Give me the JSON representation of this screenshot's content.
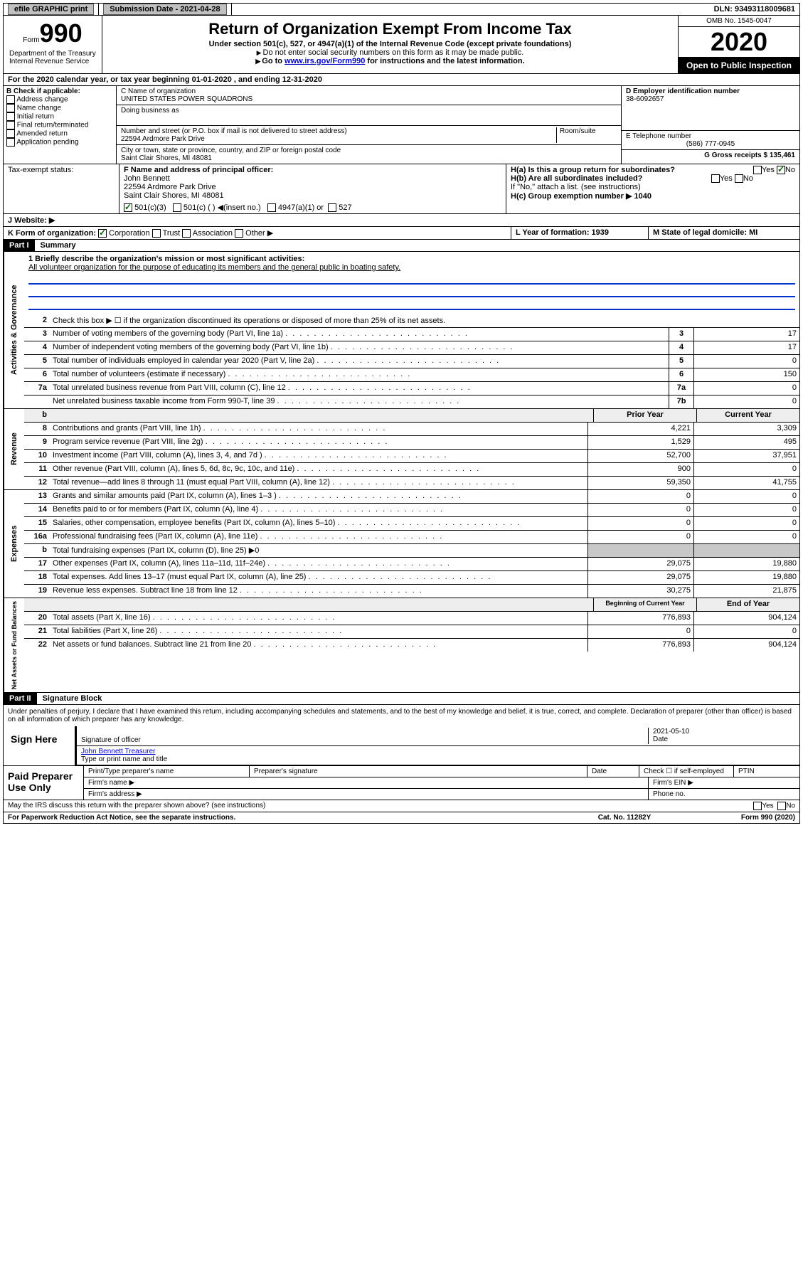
{
  "topbar": {
    "efile": "efile GRAPHIC print",
    "submission_label": "Submission Date - 2021-04-28",
    "dln_label": "DLN: 93493118009681"
  },
  "header": {
    "form_word": "Form",
    "form_num": "990",
    "title": "Return of Organization Exempt From Income Tax",
    "subtitle": "Under section 501(c), 527, or 4947(a)(1) of the Internal Revenue Code (except private foundations)",
    "note1": "Do not enter social security numbers on this form as it may be made public.",
    "note2_pre": "Go to ",
    "note2_link": "www.irs.gov/Form990",
    "note2_post": " for instructions and the latest information.",
    "dept": "Department of the Treasury\nInternal Revenue Service",
    "omb": "OMB No. 1545-0047",
    "year": "2020",
    "open": "Open to Public Inspection"
  },
  "periodA": "For the 2020 calendar year, or tax year beginning 01-01-2020    , and ending 12-31-2020",
  "sectionB": {
    "label": "B Check if applicable:",
    "opts": [
      "Address change",
      "Name change",
      "Initial return",
      "Final return/terminated",
      "Amended return",
      "Application pending"
    ]
  },
  "sectionC": {
    "name_lbl": "C Name of organization",
    "name": "UNITED STATES POWER SQUADRONS",
    "dba_lbl": "Doing business as",
    "addr_lbl": "Number and street (or P.O. box if mail is not delivered to street address)",
    "room_lbl": "Room/suite",
    "addr": "22594 Ardmore Park Drive",
    "city_lbl": "City or town, state or province, country, and ZIP or foreign postal code",
    "city": "Saint Clair Shores, MI  48081"
  },
  "sectionD": {
    "lbl": "D Employer identification number",
    "ein": "38-6092657"
  },
  "sectionE": {
    "lbl": "E Telephone number",
    "phone": "(586) 777-0945"
  },
  "sectionG": {
    "lbl": "G Gross receipts $ 135,461"
  },
  "sectionF": {
    "lbl": "F Name and address of principal officer:",
    "name": "John Bennett",
    "addr1": "22594 Ardmore Park Drive",
    "addr2": "Saint Clair Shores, MI  48081"
  },
  "sectionH": {
    "a": "H(a)  Is this a group return for subordinates?",
    "b": "H(b)  Are all subordinates included?",
    "b_note": "If \"No,\" attach a list. (see instructions)",
    "c": "H(c)  Group exemption number ▶  1040"
  },
  "taxExempt": {
    "lbl": "Tax-exempt status:",
    "o1": "501(c)(3)",
    "o2": "501(c) (  ) ◀(insert no.)",
    "o3": "4947(a)(1) or",
    "o4": "527"
  },
  "sectionJ": "J   Website: ▶",
  "sectionK": {
    "pre": "K Form of organization:",
    "opts": [
      "Corporation",
      "Trust",
      "Association",
      "Other ▶"
    ]
  },
  "sectionL": "L Year of formation: 1939",
  "sectionM": "M State of legal domicile: MI",
  "part1": {
    "label": "Part I",
    "title": "Summary",
    "q1_lbl": "1  Briefly describe the organization's mission or most significant activities:",
    "q1_val": "All volunteer organization for the purpose of educating its members and the general public in boating safety.",
    "q2": "Check this box ▶ ☐  if the organization discontinued its operations or disposed of more than 25% of its net assets.",
    "rows_gov": [
      {
        "n": "3",
        "d": "Number of voting members of the governing body (Part VI, line 1a)",
        "box": "3",
        "v": "17"
      },
      {
        "n": "4",
        "d": "Number of independent voting members of the governing body (Part VI, line 1b)",
        "box": "4",
        "v": "17"
      },
      {
        "n": "5",
        "d": "Total number of individuals employed in calendar year 2020 (Part V, line 2a)",
        "box": "5",
        "v": "0"
      },
      {
        "n": "6",
        "d": "Total number of volunteers (estimate if necessary)",
        "box": "6",
        "v": "150"
      },
      {
        "n": "7a",
        "d": "Total unrelated business revenue from Part VIII, column (C), line 12",
        "box": "7a",
        "v": "0"
      },
      {
        "n": "",
        "d": "Net unrelated business taxable income from Form 990-T, line 39",
        "box": "7b",
        "v": "0"
      }
    ],
    "hdr_b": "b",
    "hdr_prior": "Prior Year",
    "hdr_curr": "Current Year",
    "rows_rev": [
      {
        "n": "8",
        "d": "Contributions and grants (Part VIII, line 1h)",
        "p": "4,221",
        "c": "3,309"
      },
      {
        "n": "9",
        "d": "Program service revenue (Part VIII, line 2g)",
        "p": "1,529",
        "c": "495"
      },
      {
        "n": "10",
        "d": "Investment income (Part VIII, column (A), lines 3, 4, and 7d )",
        "p": "52,700",
        "c": "37,951"
      },
      {
        "n": "11",
        "d": "Other revenue (Part VIII, column (A), lines 5, 6d, 8c, 9c, 10c, and 11e)",
        "p": "900",
        "c": "0"
      },
      {
        "n": "12",
        "d": "Total revenue—add lines 8 through 11 (must equal Part VIII, column (A), line 12)",
        "p": "59,350",
        "c": "41,755"
      }
    ],
    "rows_exp": [
      {
        "n": "13",
        "d": "Grants and similar amounts paid (Part IX, column (A), lines 1–3 )",
        "p": "0",
        "c": "0"
      },
      {
        "n": "14",
        "d": "Benefits paid to or for members (Part IX, column (A), line 4)",
        "p": "0",
        "c": "0"
      },
      {
        "n": "15",
        "d": "Salaries, other compensation, employee benefits (Part IX, column (A), lines 5–10)",
        "p": "0",
        "c": "0"
      },
      {
        "n": "16a",
        "d": "Professional fundraising fees (Part IX, column (A), line 11e)",
        "p": "0",
        "c": "0"
      },
      {
        "n": "b",
        "d": "Total fundraising expenses (Part IX, column (D), line 25) ▶0",
        "p": "",
        "c": "",
        "shade": true
      },
      {
        "n": "17",
        "d": "Other expenses (Part IX, column (A), lines 11a–11d, 11f–24e)",
        "p": "29,075",
        "c": "19,880"
      },
      {
        "n": "18",
        "d": "Total expenses. Add lines 13–17 (must equal Part IX, column (A), line 25)",
        "p": "29,075",
        "c": "19,880"
      },
      {
        "n": "19",
        "d": "Revenue less expenses. Subtract line 18 from line 12",
        "p": "30,275",
        "c": "21,875"
      }
    ],
    "hdr_beg": "Beginning of Current Year",
    "hdr_end": "End of Year",
    "rows_net": [
      {
        "n": "20",
        "d": "Total assets (Part X, line 16)",
        "p": "776,893",
        "c": "904,124"
      },
      {
        "n": "21",
        "d": "Total liabilities (Part X, line 26)",
        "p": "0",
        "c": "0"
      },
      {
        "n": "22",
        "d": "Net assets or fund balances. Subtract line 21 from line 20",
        "p": "776,893",
        "c": "904,124"
      }
    ]
  },
  "part2": {
    "label": "Part II",
    "title": "Signature Block",
    "decl": "Under penalties of perjury, I declare that I have examined this return, including accompanying schedules and statements, and to the best of my knowledge and belief, it is true, correct, and complete. Declaration of preparer (other than officer) is based on all information of which preparer has any knowledge.",
    "sign_here": "Sign Here",
    "sig_officer_lbl": "Signature of officer",
    "sig_date": "2021-05-10",
    "sig_date_lbl": "Date",
    "officer_name": "John Bennett  Treasurer",
    "officer_name_lbl": "Type or print name and title",
    "paid": "Paid Preparer Use Only",
    "prep_name_lbl": "Print/Type preparer's name",
    "prep_sig_lbl": "Preparer's signature",
    "prep_date_lbl": "Date",
    "prep_check": "Check ☐ if self-employed",
    "ptin": "PTIN",
    "firm_name": "Firm's name  ▶",
    "firm_ein": "Firm's EIN ▶",
    "firm_addr": "Firm's address ▶",
    "phone": "Phone no."
  },
  "footer": {
    "discuss": "May the IRS discuss this return with the preparer shown above? (see instructions)",
    "paperwork": "For Paperwork Reduction Act Notice, see the separate instructions.",
    "cat": "Cat. No. 11282Y",
    "form": "Form 990 (2020)"
  },
  "yesno": {
    "yes": "Yes",
    "no": "No"
  }
}
